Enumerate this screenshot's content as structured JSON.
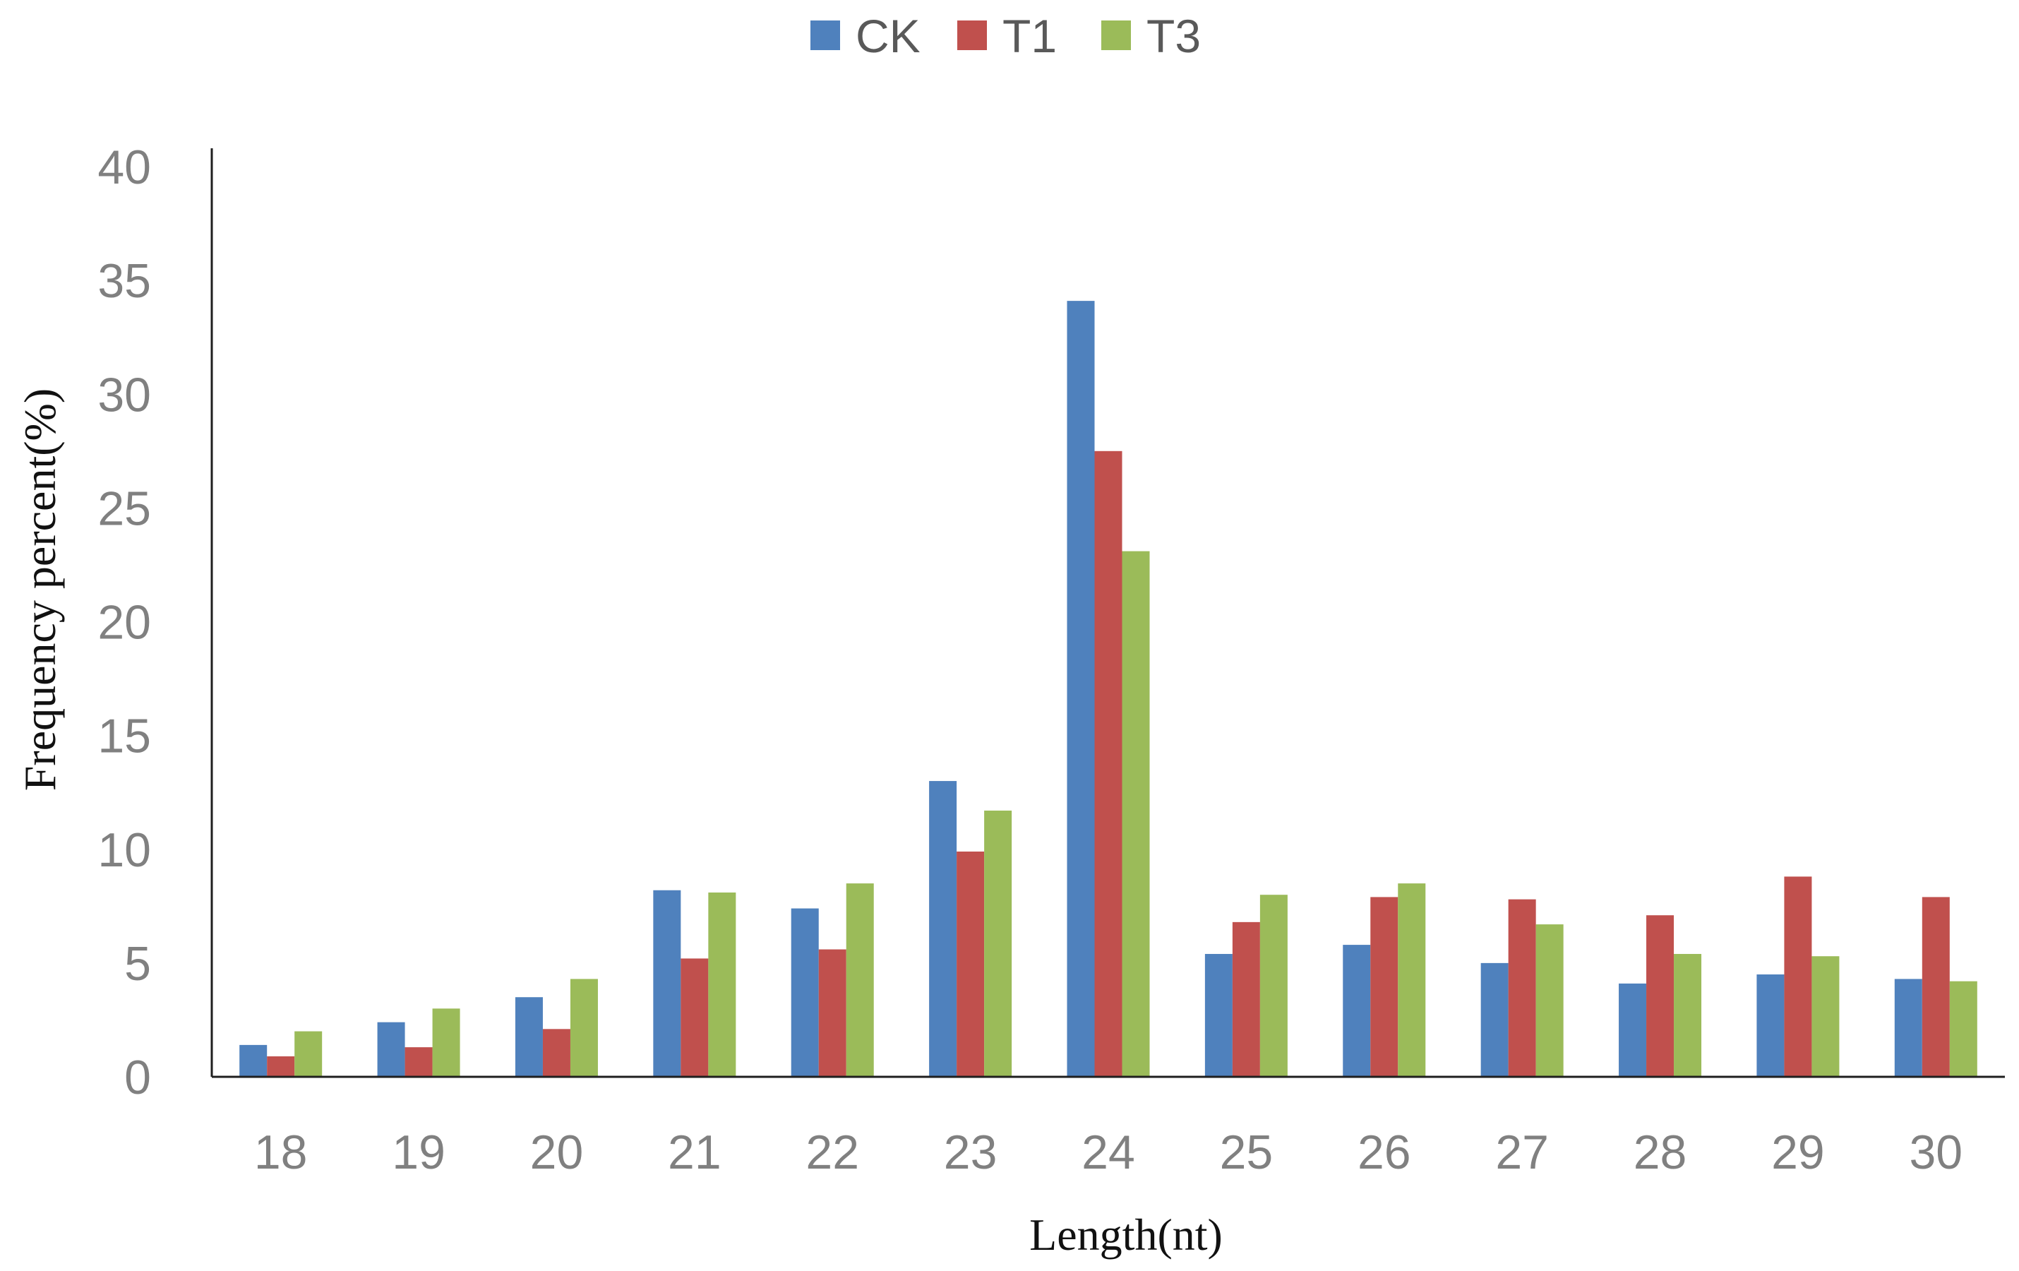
{
  "chart_data": {
    "type": "bar",
    "title": "",
    "xlabel": "Length(nt)",
    "ylabel": "Frequency percent(%)",
    "categories": [
      "18",
      "19",
      "20",
      "21",
      "22",
      "23",
      "24",
      "25",
      "26",
      "27",
      "28",
      "29",
      "30"
    ],
    "ylim": [
      0,
      40
    ],
    "yticks": [
      0,
      5,
      10,
      15,
      20,
      25,
      30,
      35,
      40
    ],
    "grid": false,
    "legend_position": "top-center",
    "series": [
      {
        "name": "CK",
        "color": "#4F81BD",
        "values": [
          1.4,
          2.4,
          3.5,
          8.2,
          7.4,
          13.0,
          34.1,
          5.4,
          5.8,
          5.0,
          4.1,
          4.5,
          4.3
        ]
      },
      {
        "name": "T1",
        "color": "#C0504D",
        "values": [
          0.9,
          1.3,
          2.1,
          5.2,
          5.6,
          9.9,
          27.5,
          6.8,
          7.9,
          7.8,
          7.1,
          8.8,
          7.9
        ]
      },
      {
        "name": "T3",
        "color": "#9BBB59",
        "values": [
          2.0,
          3.0,
          4.3,
          8.1,
          8.5,
          11.7,
          23.1,
          8.0,
          8.5,
          6.7,
          5.4,
          5.3,
          4.2
        ]
      }
    ]
  }
}
